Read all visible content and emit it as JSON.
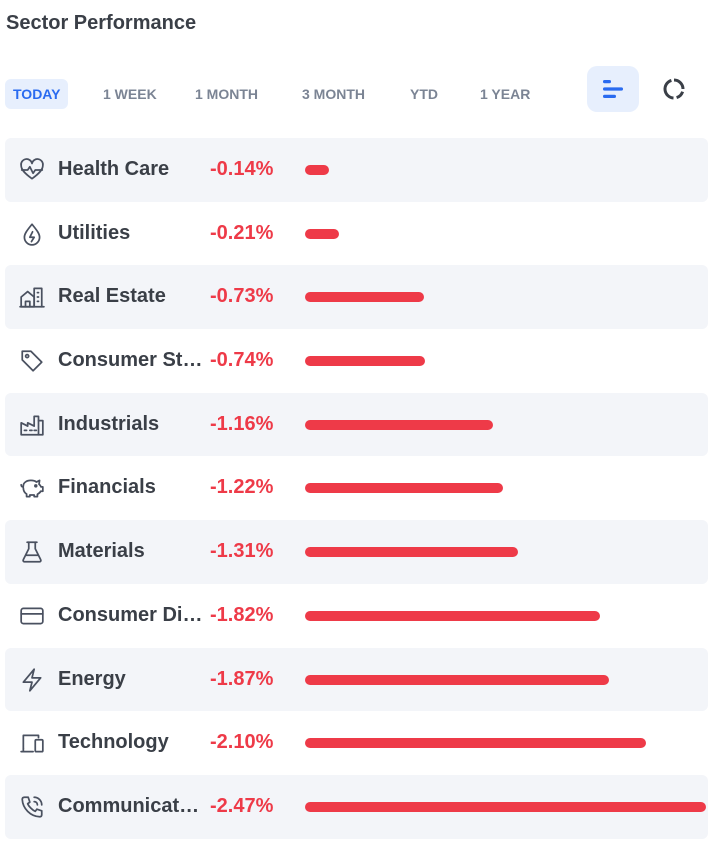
{
  "title": "Sector Performance",
  "accent_color": "#2a6bf0",
  "negative_color": "#ee3a48",
  "tabs": [
    {
      "label": "TODAY",
      "active": true
    },
    {
      "label": "1 WEEK",
      "active": false
    },
    {
      "label": "1 MONTH",
      "active": false
    },
    {
      "label": "3 MONTH",
      "active": false
    },
    {
      "label": "YTD",
      "active": false
    },
    {
      "label": "1 YEAR",
      "active": false
    }
  ],
  "view_toggle": {
    "bar_icon": "horizontal-bars-icon",
    "donut_icon": "donut-chart-icon",
    "selected": "bar"
  },
  "sectors": [
    {
      "name": "Health Care",
      "value": "-0.14%",
      "change": -0.14,
      "icon": "heart-pulse-icon"
    },
    {
      "name": "Utilities",
      "value": "-0.21%",
      "change": -0.21,
      "icon": "droplet-bolt-icon"
    },
    {
      "name": "Real Estate",
      "value": "-0.73%",
      "change": -0.73,
      "icon": "buildings-icon"
    },
    {
      "name": "Consumer St…",
      "value": "-0.74%",
      "change": -0.74,
      "icon": "tag-icon"
    },
    {
      "name": "Industrials",
      "value": "-1.16%",
      "change": -1.16,
      "icon": "factory-icon"
    },
    {
      "name": "Financials",
      "value": "-1.22%",
      "change": -1.22,
      "icon": "piggy-bank-icon"
    },
    {
      "name": "Materials",
      "value": "-1.31%",
      "change": -1.31,
      "icon": "flask-icon"
    },
    {
      "name": "Consumer Di…",
      "value": "-1.82%",
      "change": -1.82,
      "icon": "credit-card-icon"
    },
    {
      "name": "Energy",
      "value": "-1.87%",
      "change": -1.87,
      "icon": "lightning-icon"
    },
    {
      "name": "Technology",
      "value": "-2.10%",
      "change": -2.1,
      "icon": "devices-icon"
    },
    {
      "name": "Communicat…",
      "value": "-2.47%",
      "change": -2.47,
      "icon": "phone-ringing-icon"
    }
  ]
}
